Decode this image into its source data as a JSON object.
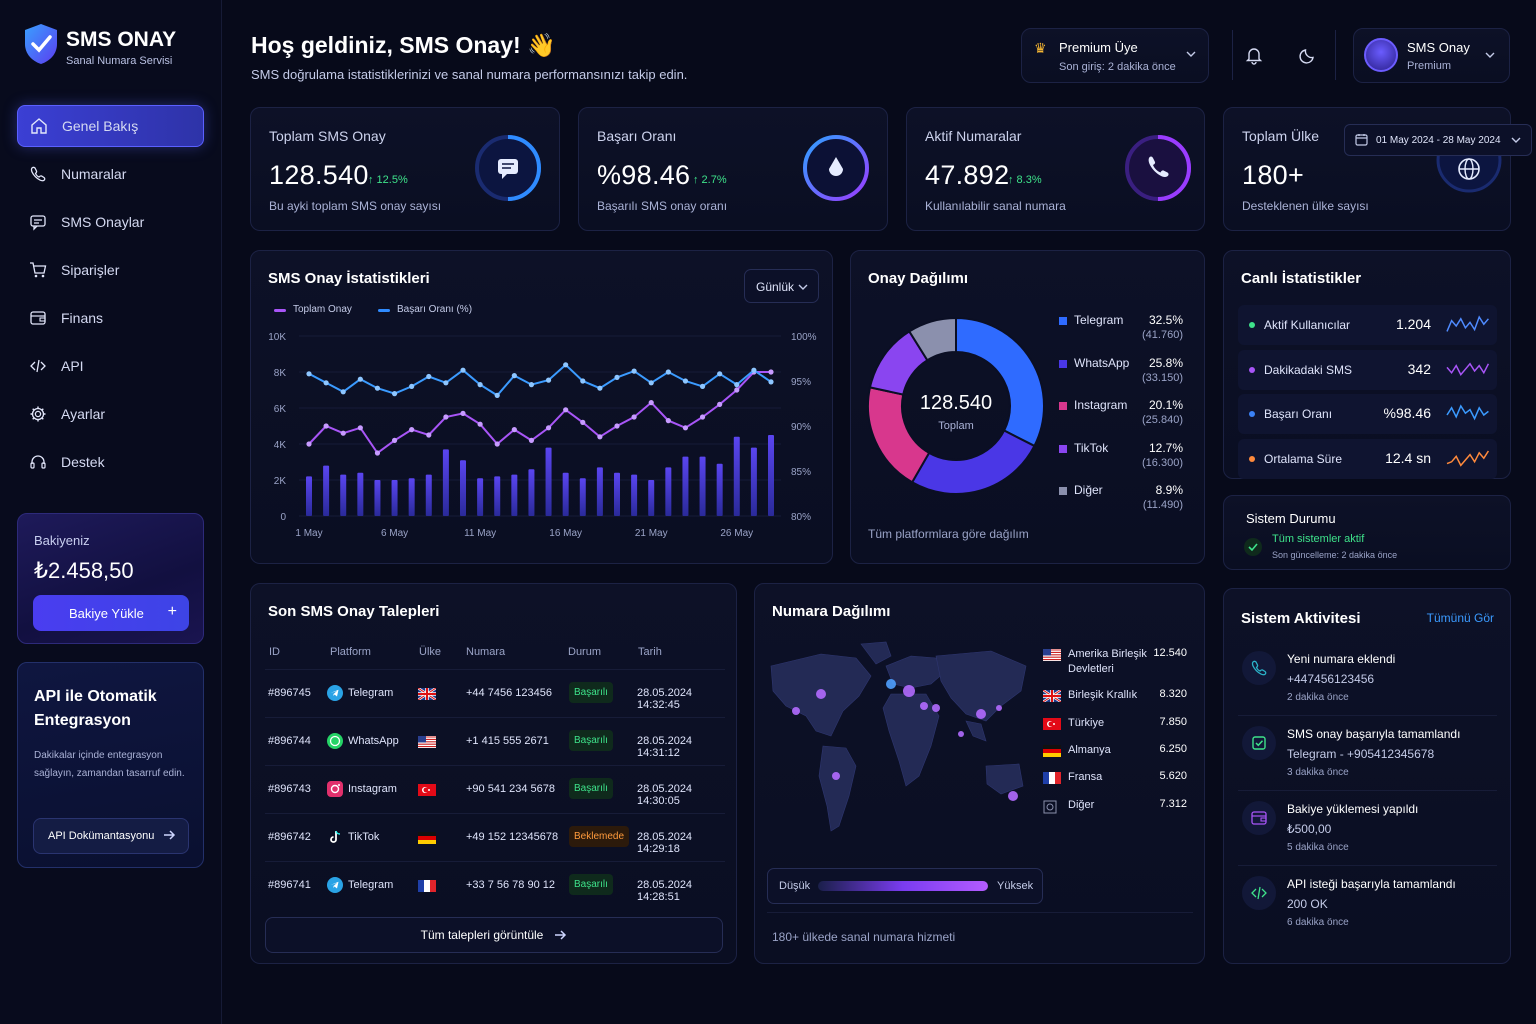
{
  "brand": {
    "name": "SMS ONAY",
    "tagline": "Sanal Numara Servisi"
  },
  "nav": [
    {
      "label": "Genel Bakış",
      "icon": "home-icon",
      "active": true
    },
    {
      "label": "Numaralar",
      "icon": "phone-icon"
    },
    {
      "label": "SMS Onaylar",
      "icon": "message-icon"
    },
    {
      "label": "Siparişler",
      "icon": "cart-icon"
    },
    {
      "label": "Finans",
      "icon": "wallet-icon"
    },
    {
      "label": "API",
      "icon": "code-icon"
    },
    {
      "label": "Ayarlar",
      "icon": "gear-icon"
    },
    {
      "label": "Destek",
      "icon": "headset-icon"
    }
  ],
  "balance": {
    "label": "Bakiyeniz",
    "value": "₺2.458,50",
    "button": "Bakiye Yükle"
  },
  "api_promo": {
    "title": "API ile Otomatik Entegrasyon",
    "text": "Dakikalar içinde entegrasyon sağlayın, zamandan tasarruf edin.",
    "button": "API Dokümantasyonu"
  },
  "header": {
    "title": "Hoş geldiniz, SMS Onay! 👋",
    "subtitle": "SMS doğrulama istatistiklerinizi ve sanal numara performansınızı takip edin."
  },
  "premium": {
    "title": "Premium Üye",
    "sub": "Son giriş: 2 dakika önce"
  },
  "user": {
    "name": "SMS Onay",
    "role": "Premium"
  },
  "date_range": "01 May 2024 - 28 May 2024",
  "stats": [
    {
      "title": "Toplam SMS Onay",
      "value": "128.540",
      "change": "↑ 12.5%",
      "sub": "Bu ayki toplam SMS onay sayısı"
    },
    {
      "title": "Başarı Oranı",
      "value": "%98.46",
      "change": "↑ 2.7%",
      "sub": "Başarılı SMS onay oranı"
    },
    {
      "title": "Aktif Numaralar",
      "value": "47.892",
      "change": "↑ 8.3%",
      "sub": "Kullanılabilir sanal numara"
    },
    {
      "title": "Toplam Ülke",
      "value": "180+",
      "sub": "Desteklenen ülke sayısı"
    }
  ],
  "sms_stats": {
    "title": "SMS Onay İstatistikleri",
    "period": "Günlük",
    "legend": [
      "Toplam Onay",
      "Başarı Oranı (%)"
    ],
    "left_ticks": [
      "10K",
      "8K",
      "6K",
      "4K",
      "2K",
      "0"
    ],
    "right_ticks": [
      "100%",
      "95%",
      "90%",
      "85%",
      "80%"
    ],
    "x_ticks": [
      "1 May",
      "6 May",
      "11 May",
      "16 May",
      "21 May",
      "26 May"
    ]
  },
  "chart_data": {
    "type": "line",
    "categories": [
      1,
      2,
      3,
      4,
      5,
      6,
      7,
      8,
      9,
      10,
      11,
      12,
      13,
      14,
      15,
      16,
      17,
      18,
      19,
      20,
      21,
      22,
      23,
      24,
      25,
      26,
      27,
      28
    ],
    "series": [
      {
        "name": "Toplam Onay",
        "axis": "left",
        "values": [
          4000,
          5000,
          4600,
          4900,
          3500,
          4200,
          4800,
          4500,
          5500,
          5700,
          5100,
          4000,
          4800,
          4200,
          4900,
          5900,
          5200,
          4400,
          5000,
          5500,
          6300,
          5300,
          4900,
          5500,
          6200,
          7000,
          8000,
          8000
        ]
      },
      {
        "name": "Başarı Oranı (%)",
        "axis": "right",
        "values": [
          95.8,
          94.8,
          93.8,
          95.2,
          94.2,
          93.6,
          94.4,
          95.5,
          94.8,
          96.2,
          94.6,
          93.4,
          95.6,
          94.6,
          95.1,
          96.8,
          95.0,
          94.2,
          95.4,
          96.1,
          94.8,
          96.0,
          95.0,
          94.4,
          95.8,
          94.6,
          96.2,
          94.9
        ]
      },
      {
        "name": "bars",
        "axis": "left",
        "values": [
          2200,
          2800,
          2300,
          2400,
          2000,
          2000,
          2100,
          2300,
          3700,
          3100,
          2100,
          2200,
          2300,
          2600,
          3800,
          2400,
          2100,
          2700,
          2400,
          2300,
          2000,
          2700,
          3300,
          3300,
          2900,
          4400,
          3800,
          4500
        ]
      }
    ],
    "ylim": [
      0,
      10000
    ],
    "y2lim": [
      80,
      100
    ]
  },
  "donut": {
    "title": "Onay Dağılımı",
    "center_value": "128.540",
    "center_label": "Toplam",
    "footer": "Tüm platformlara göre dağılım",
    "slices": [
      {
        "name": "Telegram",
        "pct": "32.5%",
        "count": "(41.760)",
        "value": 32.5,
        "color": "#2f6bff"
      },
      {
        "name": "WhatsApp",
        "pct": "25.8%",
        "count": "(33.150)",
        "value": 25.8,
        "color": "#4a37e6"
      },
      {
        "name": "Instagram",
        "pct": "20.1%",
        "count": "(25.840)",
        "value": 20.1,
        "color": "#d8378d"
      },
      {
        "name": "TikTok",
        "pct": "12.7%",
        "count": "(16.300)",
        "value": 12.7,
        "color": "#8a45f0"
      },
      {
        "name": "Diğer",
        "pct": "8.9%",
        "count": "(11.490)",
        "value": 8.9,
        "color": "#8b90ad"
      }
    ]
  },
  "live": {
    "title": "Canlı İstatistikler",
    "items": [
      {
        "label": "Aktif Kullanıcılar",
        "value": "1.204",
        "color": "#3ee28a",
        "line": "#4f8bff"
      },
      {
        "label": "Dakikadaki SMS",
        "value": "342",
        "color": "#a855f7",
        "line": "#a855f7"
      },
      {
        "label": "Başarı Oranı",
        "value": "%98.46",
        "color": "#3b82f6",
        "line": "#3b9bff"
      },
      {
        "label": "Ortalama Süre",
        "value": "12.4 sn",
        "color": "#ff8a3c",
        "line": "#ff8a3c"
      }
    ]
  },
  "system": {
    "title": "Sistem Durumu",
    "status": "Tüm sistemler aktif",
    "updated": "Son güncelleme: 2 dakika önce"
  },
  "requests": {
    "title": "Son SMS Onay Talepleri",
    "headers": [
      "ID",
      "Platform",
      "Ülke",
      "Numara",
      "Durum",
      "Tarih"
    ],
    "rows": [
      {
        "id": "#896745",
        "platform": "Telegram",
        "picon": "telegram-icon",
        "flag": "uk-flag-icon",
        "number": "+44 7456 123456",
        "status": "Başarılı",
        "ok": true,
        "date": "28.05.2024 14:32:45"
      },
      {
        "id": "#896744",
        "platform": "WhatsApp",
        "picon": "whatsapp-icon",
        "flag": "us-flag-icon",
        "number": "+1 415 555 2671",
        "status": "Başarılı",
        "ok": true,
        "date": "28.05.2024 14:31:12"
      },
      {
        "id": "#896743",
        "platform": "Instagram",
        "picon": "instagram-icon",
        "flag": "tr-flag-icon",
        "number": "+90 541 234 5678",
        "status": "Başarılı",
        "ok": true,
        "date": "28.05.2024 14:30:05"
      },
      {
        "id": "#896742",
        "platform": "TikTok",
        "picon": "tiktok-icon",
        "flag": "de-flag-icon",
        "number": "+49 152 12345678",
        "status": "Beklemede",
        "ok": false,
        "date": "28.05.2024 14:29:18"
      },
      {
        "id": "#896741",
        "platform": "Telegram",
        "picon": "telegram-icon",
        "flag": "fr-flag-icon",
        "number": "+33 7 56 78 90 12",
        "status": "Başarılı",
        "ok": true,
        "date": "28.05.2024 14:28:51"
      }
    ],
    "button": "Tüm talepleri görüntüle"
  },
  "map": {
    "title": "Numara Dağılımı",
    "low": "Düşük",
    "high": "Yüksek",
    "footer": "180+ ülkede sanal numara hizmeti",
    "countries": [
      {
        "name": "Amerika Birleşik Devletleri",
        "value": "12.540",
        "flag": "us-flag-icon"
      },
      {
        "name": "Birleşik Krallık",
        "value": "8.320",
        "flag": "uk-flag-icon"
      },
      {
        "name": "Türkiye",
        "value": "7.850",
        "flag": "tr-flag-icon"
      },
      {
        "name": "Almanya",
        "value": "6.250",
        "flag": "de-flag-icon"
      },
      {
        "name": "Fransa",
        "value": "5.620",
        "flag": "fr-flag-icon"
      },
      {
        "name": "Diğer",
        "value": "7.312",
        "flag": "globe-icon"
      }
    ]
  },
  "activity": {
    "title": "Sistem Aktivitesi",
    "link": "Tümünü Gör",
    "items": [
      {
        "title": "Yeni numara eklendi",
        "detail": "+447456123456",
        "time": "2 dakika önce",
        "icon": "phone-icon",
        "color": "#2bb3c9"
      },
      {
        "title": "SMS onay başarıyla tamamlandı",
        "detail": "Telegram - +905412345678",
        "time": "3 dakika önce",
        "icon": "check-icon",
        "color": "#3ee28a"
      },
      {
        "title": "Bakiye yüklemesi yapıldı",
        "detail": "₺500,00",
        "time": "5 dakika önce",
        "icon": "wallet-icon",
        "color": "#a855f7"
      },
      {
        "title": "API isteği başarıyla tamamlandı",
        "detail": "200 OK",
        "time": "6 dakika önce",
        "icon": "code-icon",
        "color": "#3ee28a"
      }
    ]
  }
}
